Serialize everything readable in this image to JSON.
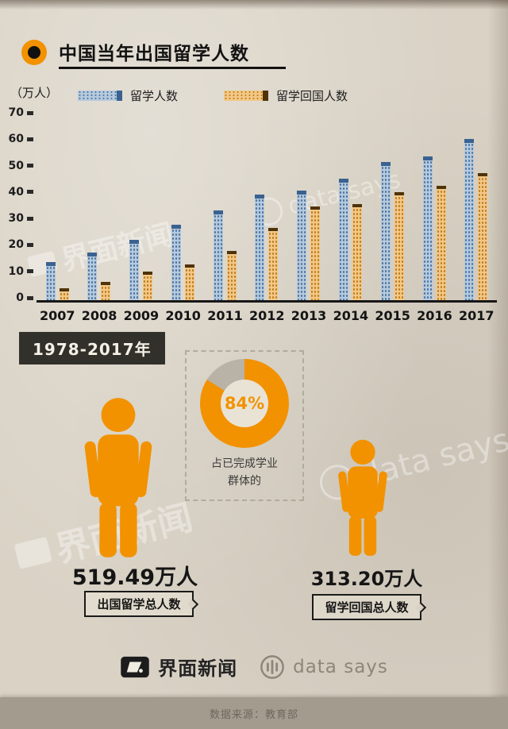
{
  "header": {
    "title": "中国当年出国留学人数"
  },
  "chart_data": {
    "type": "bar",
    "title": "中国当年出国留学人数",
    "unit_label": "（万人）",
    "categories": [
      "2007",
      "2008",
      "2009",
      "2010",
      "2011",
      "2012",
      "2013",
      "2014",
      "2015",
      "2016",
      "2017"
    ],
    "series": [
      {
        "name": "留学人数",
        "values": [
          14.4,
          17.98,
          22.93,
          28.47,
          33.97,
          39.96,
          41.39,
          45.98,
          52.37,
          54.45,
          60.84
        ]
      },
      {
        "name": "留学回国人数",
        "values": [
          4.4,
          6.93,
          10.83,
          13.48,
          18.62,
          27.29,
          35.35,
          36.48,
          40.91,
          43.25,
          48.09
        ]
      }
    ],
    "ylim": [
      0,
      70
    ],
    "yticks": [
      0,
      10,
      20,
      30,
      40,
      50,
      60,
      70
    ],
    "grid": false,
    "legend_position": "top"
  },
  "period_label": "1978-2017年",
  "donut": {
    "percent": 84,
    "percent_label": "84%",
    "caption_line1": "占已完成学业",
    "caption_line2": "群体的"
  },
  "totals": [
    {
      "value": "519.49万人",
      "label": "出国留学总人数"
    },
    {
      "value": "313.20万人",
      "label": "留学回国总人数"
    }
  ],
  "footer": {
    "jiemian": "界面新闻",
    "datasays": "data says",
    "source": "数据来源：教育部"
  },
  "watermarks": [
    {
      "text": "界面新闻"
    },
    {
      "text": "data says"
    },
    {
      "text": "界面新闻"
    },
    {
      "text": "data says"
    }
  ],
  "colors": {
    "orange": "#f29200",
    "blue_bar_light": "#b7cadd",
    "blue_bar_dot": "#4a76a4",
    "blue_bar_dark": "#3a6290",
    "orange_bar_light": "#f3c887",
    "orange_bar_dot": "#bf7d1e",
    "orange_bar_dark": "#4f3307",
    "donut_gray": "#b9b3a7",
    "background": "#d9d2c5"
  }
}
